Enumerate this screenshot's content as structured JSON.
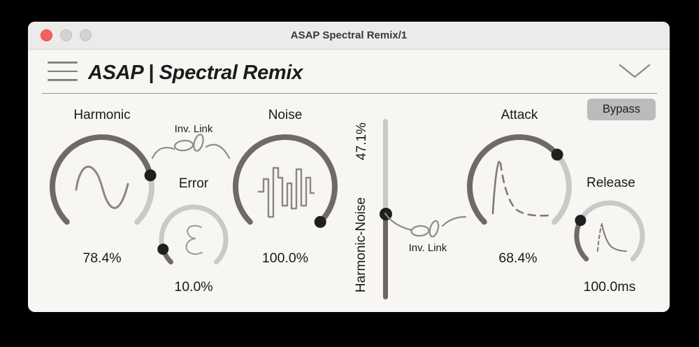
{
  "window": {
    "title": "ASAP Spectral Remix/1"
  },
  "header": {
    "app_title": "ASAP | Spectral Remix",
    "bypass_label": "Bypass"
  },
  "knobs": {
    "harmonic": {
      "label": "Harmonic",
      "value": "78.4%",
      "norm": 0.784
    },
    "error": {
      "label": "Error",
      "value": "10.0%",
      "norm": 0.1
    },
    "noise": {
      "label": "Noise",
      "value": "100.0%",
      "norm": 1.0
    },
    "attack": {
      "label": "Attack",
      "value": "68.4%",
      "norm": 0.684
    },
    "release": {
      "label": "Release",
      "value": "100.0ms",
      "norm": 0.27
    }
  },
  "slider": {
    "label": "Harmonic-Noise",
    "value": "47.1%",
    "norm": 0.471
  },
  "links": {
    "link1": "Inv. Link",
    "link2": "Inv. Link"
  },
  "colors": {
    "arc_filled": "#6e6a69",
    "arc_empty": "#c6cac9",
    "marker": "#1f1f1f",
    "slider_fill": "#6b6766",
    "slider_track": "#c6cac9",
    "traffic_red": "#f5615c",
    "button_bg": "#b9bcbb"
  }
}
